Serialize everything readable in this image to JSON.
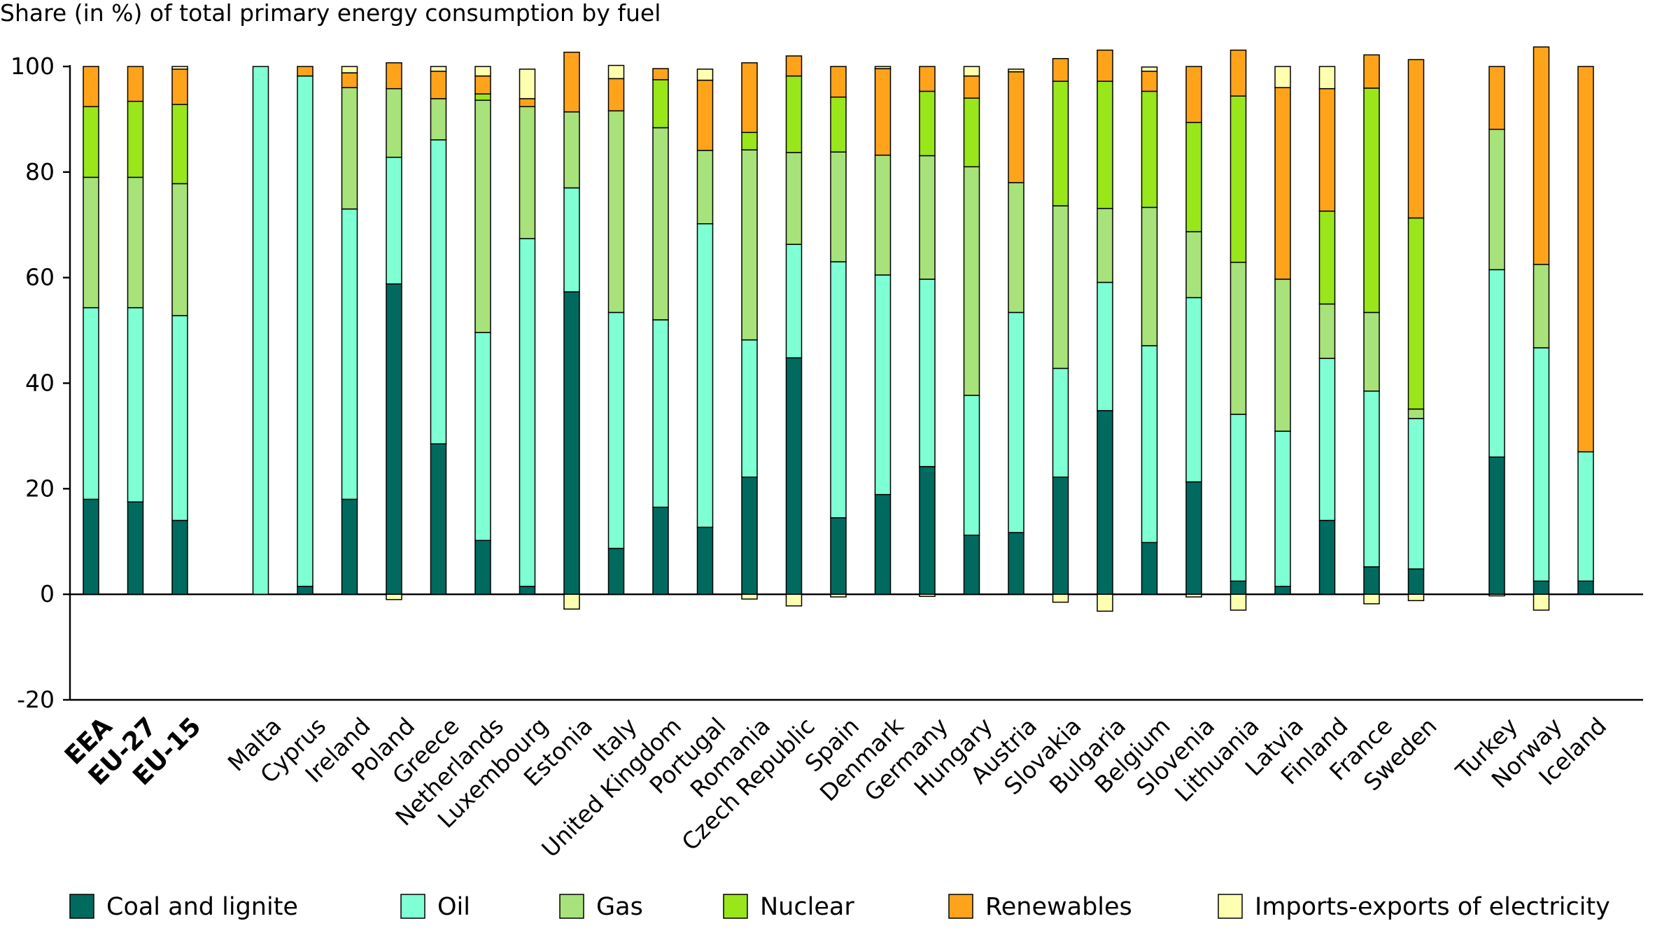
{
  "chart_data": {
    "type": "bar",
    "stacked": true,
    "title": "Share (in %) of total primary energy consumption by fuel",
    "ylim": [
      -20,
      100
    ],
    "yticks": [
      -20,
      0,
      20,
      40,
      60,
      80,
      100
    ],
    "legend_position": "bottom",
    "categories": [
      "EEA",
      "EU-27",
      "EU-15",
      "Malta",
      "Cyprus",
      "Ireland",
      "Poland",
      "Greece",
      "Netherlands",
      "Luxembourg",
      "Estonia",
      "Italy",
      "United Kingdom",
      "Portugal",
      "Romania",
      "Czech Republic",
      "Spain",
      "Denmark",
      "Germany",
      "Hungary",
      "Austria",
      "Slovakia",
      "Bulgaria",
      "Belgium",
      "Slovenia",
      "Lithuania",
      "Latvia",
      "Finland",
      "France",
      "Sweden",
      "Turkey",
      "Norway",
      "Iceland"
    ],
    "bold_categories": [
      "EEA",
      "EU-27",
      "EU-15"
    ],
    "groups": [
      [
        "EEA",
        "EU-27",
        "EU-15"
      ],
      [
        "Malta",
        "Cyprus",
        "Ireland",
        "Poland",
        "Greece",
        "Netherlands",
        "Luxembourg",
        "Estonia",
        "Italy",
        "United Kingdom",
        "Portugal",
        "Romania",
        "Czech Republic",
        "Spain",
        "Denmark",
        "Germany",
        "Hungary",
        "Austria",
        "Slovakia",
        "Bulgaria",
        "Belgium",
        "Slovenia",
        "Lithuania",
        "Latvia",
        "Finland",
        "France",
        "Sweden"
      ],
      [
        "Turkey",
        "Norway",
        "Iceland"
      ]
    ],
    "series": [
      {
        "name": "Coal and lignite",
        "color": "#006a5f",
        "values": [
          18.0,
          17.5,
          14.0,
          0.0,
          1.5,
          18.0,
          58.8,
          28.5,
          10.2,
          1.5,
          57.3,
          8.7,
          16.5,
          12.7,
          22.2,
          44.8,
          14.5,
          18.9,
          24.2,
          11.2,
          11.7,
          22.2,
          34.8,
          9.8,
          21.3,
          2.5,
          1.5,
          14.0,
          5.2,
          4.8,
          26.0,
          2.5,
          2.5
        ]
      },
      {
        "name": "Oil",
        "color": "#7fffd4",
        "values": [
          36.3,
          36.8,
          38.8,
          100.0,
          96.7,
          55.0,
          24.0,
          57.6,
          39.4,
          65.9,
          19.7,
          44.7,
          35.5,
          57.5,
          26.0,
          21.5,
          48.5,
          41.6,
          35.5,
          26.5,
          41.7,
          20.6,
          24.3,
          37.3,
          34.9,
          31.6,
          29.4,
          30.7,
          33.3,
          28.5,
          35.5,
          44.2,
          24.5
        ]
      },
      {
        "name": "Gas",
        "color": "#a8e27a",
        "values": [
          24.7,
          24.7,
          25.0,
          0.0,
          0.0,
          23.0,
          13.0,
          7.8,
          44.0,
          25.0,
          14.4,
          38.2,
          36.4,
          13.9,
          36.0,
          17.4,
          20.8,
          22.7,
          23.4,
          43.3,
          24.6,
          30.8,
          14.0,
          26.2,
          12.5,
          28.8,
          28.8,
          10.3,
          14.9,
          1.8,
          26.6,
          15.8,
          0.0
        ]
      },
      {
        "name": "Nuclear",
        "color": "#99e61a",
        "values": [
          13.4,
          14.4,
          15.0,
          0.0,
          0.0,
          0.0,
          0.0,
          0.0,
          1.2,
          0.0,
          0.0,
          0.0,
          9.1,
          0.0,
          3.3,
          14.5,
          10.4,
          0.0,
          12.2,
          13.0,
          0.0,
          23.6,
          24.1,
          22.0,
          20.7,
          31.5,
          0.0,
          17.6,
          42.5,
          36.2,
          0.0,
          0.0,
          0.0
        ]
      },
      {
        "name": "Renewables",
        "color": "#ffa41a",
        "values": [
          7.6,
          6.6,
          6.7,
          0.0,
          1.8,
          2.8,
          4.9,
          5.2,
          3.4,
          1.5,
          11.3,
          6.1,
          2.1,
          13.3,
          13.2,
          3.8,
          5.8,
          16.4,
          4.7,
          4.2,
          21.0,
          4.3,
          5.9,
          3.8,
          10.6,
          8.7,
          36.3,
          23.2,
          6.3,
          30.0,
          11.9,
          41.2,
          73.0
        ]
      },
      {
        "name": "Imports-exports of electricity",
        "color": "#ffffb0",
        "values": [
          0.0,
          0.0,
          0.5,
          0.0,
          0.0,
          1.2,
          -1.0,
          0.9,
          1.8,
          5.6,
          -2.8,
          2.5,
          0.0,
          2.1,
          -0.9,
          -2.2,
          -0.5,
          0.4,
          -0.4,
          1.8,
          0.5,
          -1.5,
          -3.2,
          0.8,
          -0.5,
          -3.0,
          4.0,
          4.2,
          -1.8,
          -1.2,
          -0.3,
          -3.0,
          0.0
        ]
      }
    ]
  }
}
